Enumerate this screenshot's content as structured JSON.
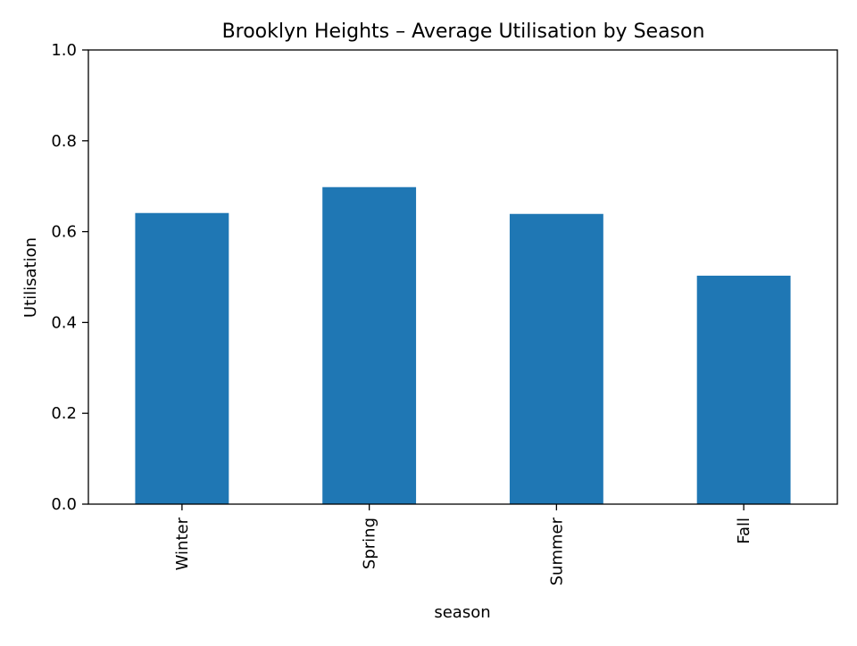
{
  "chart_data": {
    "type": "bar",
    "title": "Brooklyn Heights – Average Utilisation by Season",
    "xlabel": "season",
    "ylabel": "Utilisation",
    "categories": [
      "Winter",
      "Spring",
      "Summer",
      "Fall"
    ],
    "values": [
      0.641,
      0.698,
      0.639,
      0.503
    ],
    "ylim": [
      0,
      1.0
    ],
    "yticks": [
      "0.0",
      "0.2",
      "0.4",
      "0.6",
      "0.8",
      "1.0"
    ],
    "grid": false,
    "legend": "none",
    "bar_color": "#1f77b4",
    "x_tick_rotation": "vertical"
  }
}
